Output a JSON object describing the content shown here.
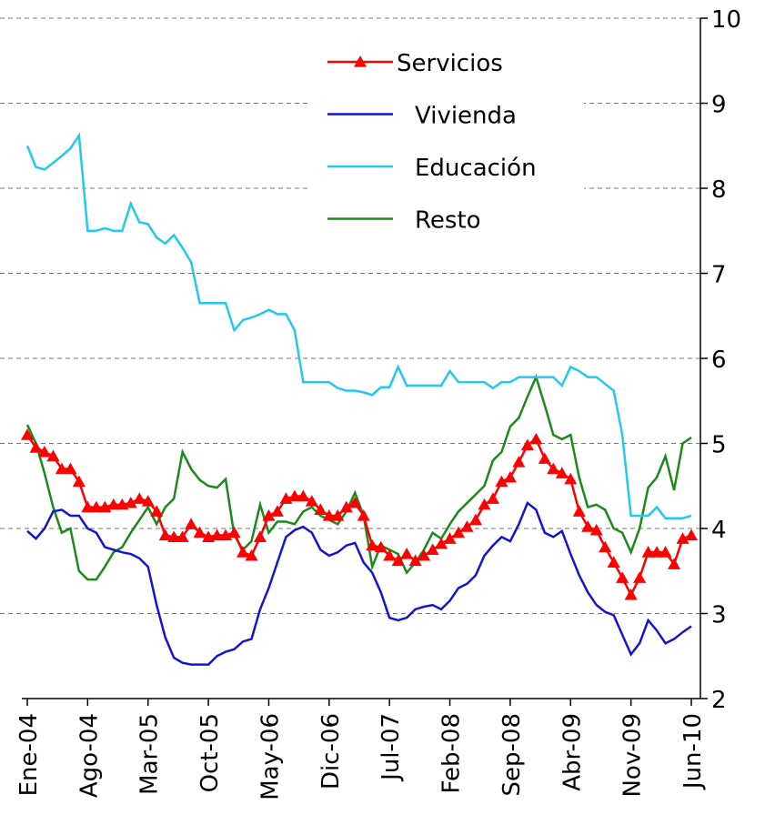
{
  "chart_data": {
    "type": "line",
    "categories": [
      "Ene-04",
      null,
      null,
      null,
      null,
      null,
      null,
      "Ago-04",
      null,
      null,
      null,
      null,
      null,
      null,
      "Mar-05",
      null,
      null,
      null,
      null,
      null,
      null,
      "Oct-05",
      null,
      null,
      null,
      null,
      null,
      null,
      "May-06",
      null,
      null,
      null,
      null,
      null,
      null,
      "Dic-06",
      null,
      null,
      null,
      null,
      null,
      null,
      "Jul-07",
      null,
      null,
      null,
      null,
      null,
      null,
      "Feb-08",
      null,
      null,
      null,
      null,
      null,
      null,
      "Sep-08",
      null,
      null,
      null,
      null,
      null,
      null,
      "Abr-09",
      null,
      null,
      null,
      null,
      null,
      null,
      "Nov-09",
      null,
      null,
      null,
      null,
      null,
      null,
      "Jun-10"
    ],
    "series": [
      {
        "name": "Servicios",
        "color": "#ff0000",
        "marker": "triangle",
        "values": [
          5.1,
          4.95,
          4.9,
          4.85,
          4.7,
          4.7,
          4.55,
          4.25,
          4.25,
          4.25,
          4.28,
          4.28,
          4.3,
          4.35,
          4.32,
          4.2,
          3.92,
          3.9,
          3.9,
          4.05,
          3.95,
          3.9,
          3.92,
          3.92,
          3.95,
          3.72,
          3.68,
          3.9,
          4.15,
          4.2,
          4.35,
          4.38,
          4.38,
          4.32,
          4.22,
          4.15,
          4.15,
          4.25,
          4.3,
          4.15,
          3.8,
          3.78,
          3.68,
          3.62,
          3.7,
          3.62,
          3.68,
          3.75,
          3.82,
          3.88,
          3.95,
          4.02,
          4.1,
          4.28,
          4.35,
          4.55,
          4.6,
          4.78,
          4.98,
          5.05,
          4.82,
          4.7,
          4.65,
          4.58,
          4.2,
          4.02,
          3.98,
          3.78,
          3.6,
          3.42,
          3.22,
          3.42,
          3.72,
          3.72,
          3.72,
          3.58,
          3.88,
          3.92
        ]
      },
      {
        "name": "Vivienda",
        "color": "#1414d2",
        "values": [
          3.97,
          3.88,
          4.0,
          4.2,
          4.22,
          4.15,
          4.15,
          4.0,
          3.95,
          3.78,
          3.75,
          3.72,
          3.7,
          3.65,
          3.55,
          3.1,
          2.72,
          2.48,
          2.42,
          2.4,
          2.4,
          2.4,
          2.5,
          2.55,
          2.58,
          2.67,
          2.7,
          3.05,
          3.3,
          3.6,
          3.9,
          3.98,
          4.02,
          3.95,
          3.75,
          3.68,
          3.72,
          3.8,
          3.83,
          3.6,
          3.48,
          3.25,
          2.95,
          2.92,
          2.95,
          3.05,
          3.08,
          3.1,
          3.05,
          3.15,
          3.3,
          3.35,
          3.45,
          3.68,
          3.8,
          3.9,
          3.85,
          4.05,
          4.3,
          4.22,
          3.95,
          3.9,
          3.97,
          3.7,
          3.45,
          3.25,
          3.1,
          3.02,
          2.98,
          2.75,
          2.52,
          2.65,
          2.92,
          2.8,
          2.65,
          2.7,
          2.78,
          2.85
        ]
      },
      {
        "name": "Educación",
        "color": "#22c8f0",
        "values": [
          8.5,
          8.25,
          8.22,
          8.3,
          8.38,
          8.47,
          8.62,
          7.5,
          7.5,
          7.53,
          7.5,
          7.5,
          7.82,
          7.6,
          7.58,
          7.42,
          7.35,
          7.45,
          7.3,
          7.13,
          6.65,
          6.65,
          6.65,
          6.65,
          6.33,
          6.45,
          6.48,
          6.52,
          6.57,
          6.52,
          6.52,
          6.33,
          5.72,
          5.72,
          5.72,
          5.72,
          5.65,
          5.62,
          5.62,
          5.6,
          5.57,
          5.66,
          5.66,
          5.9,
          5.68,
          5.68,
          5.68,
          5.68,
          5.68,
          5.85,
          5.72,
          5.72,
          5.72,
          5.72,
          5.65,
          5.72,
          5.72,
          5.78,
          5.78,
          5.78,
          5.78,
          5.78,
          5.68,
          5.9,
          5.85,
          5.78,
          5.78,
          5.7,
          5.62,
          5.1,
          4.15,
          4.15,
          4.15,
          4.25,
          4.12,
          4.12,
          4.12,
          4.15
        ]
      },
      {
        "name": "Resto",
        "color": "#1a8a1a",
        "values": [
          5.22,
          5.0,
          4.65,
          4.25,
          3.95,
          4.0,
          3.5,
          3.4,
          3.4,
          3.55,
          3.72,
          3.78,
          3.95,
          4.1,
          4.25,
          4.05,
          4.25,
          4.35,
          4.9,
          4.7,
          4.57,
          4.5,
          4.48,
          4.58,
          3.92,
          3.75,
          3.85,
          4.28,
          3.95,
          4.08,
          4.08,
          4.05,
          4.2,
          4.25,
          4.15,
          4.1,
          4.05,
          4.2,
          4.42,
          4.15,
          3.55,
          3.8,
          3.75,
          3.7,
          3.48,
          3.6,
          3.75,
          3.95,
          3.88,
          4.05,
          4.2,
          4.3,
          4.4,
          4.5,
          4.8,
          4.9,
          5.2,
          5.3,
          5.55,
          5.78,
          5.45,
          5.1,
          5.05,
          5.1,
          4.6,
          4.25,
          4.28,
          4.22,
          4.0,
          3.95,
          3.72,
          4.0,
          4.48,
          4.6,
          4.85,
          4.45,
          5.0,
          5.07
        ]
      }
    ],
    "ylim": [
      2,
      10
    ],
    "yticks": [
      2,
      3,
      4,
      5,
      6,
      7,
      8,
      9,
      10
    ],
    "grid": true
  }
}
